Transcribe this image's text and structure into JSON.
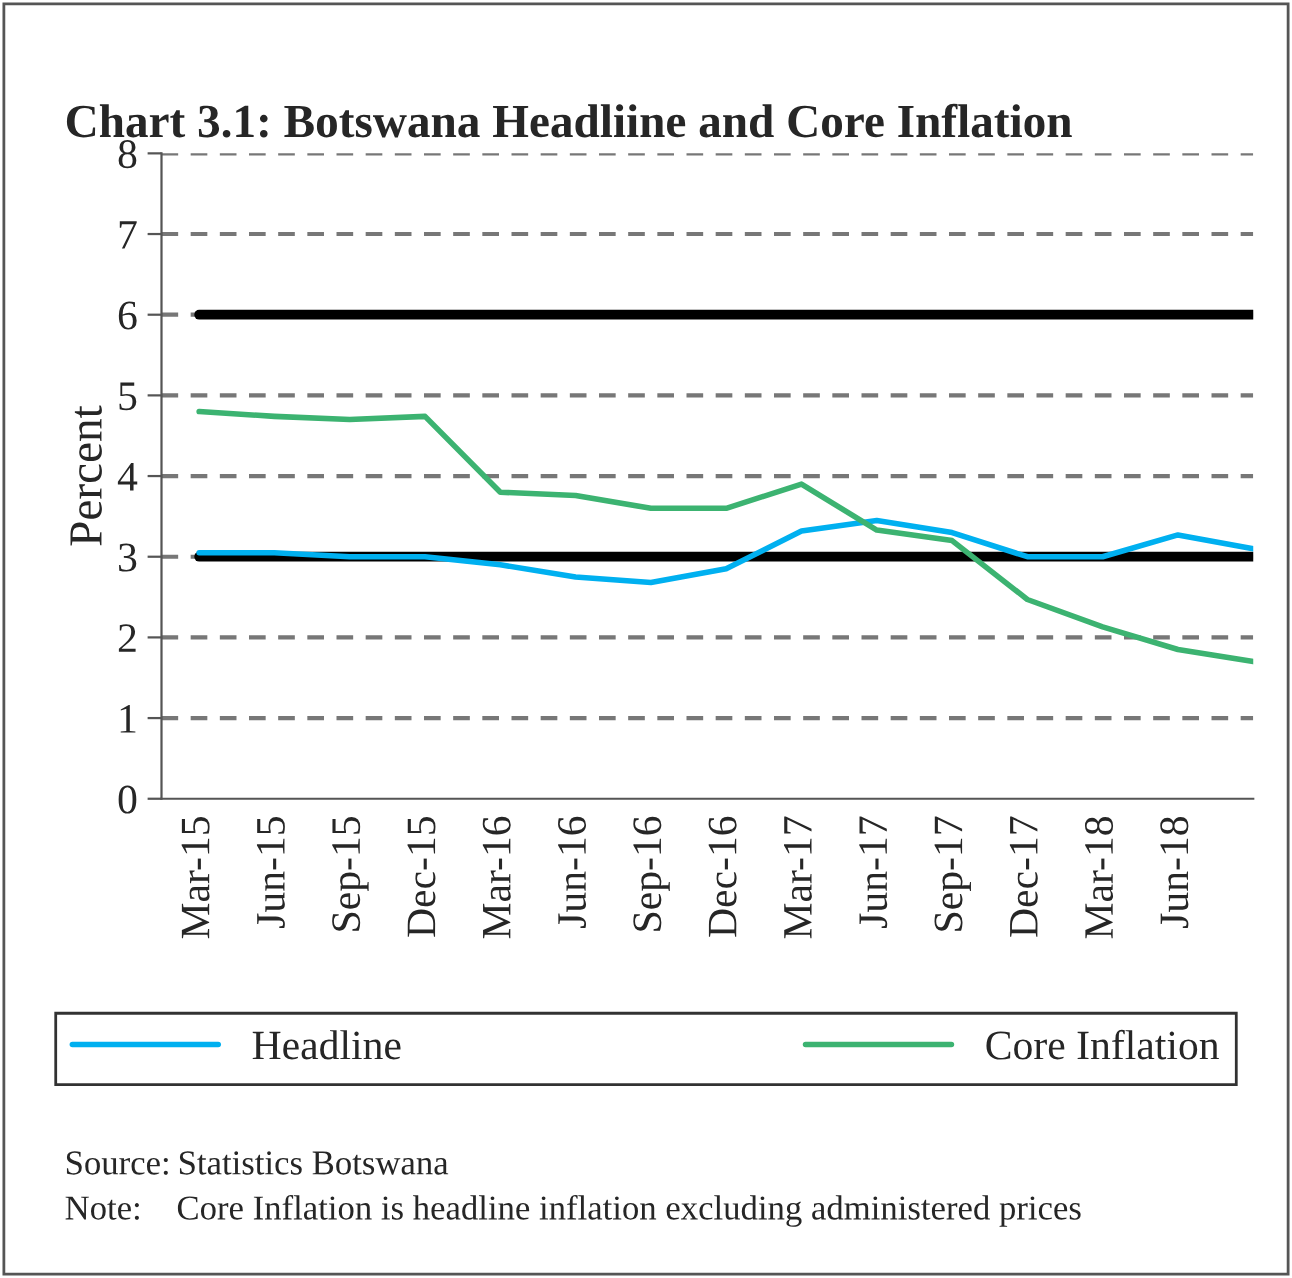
{
  "chart_data": {
    "type": "line",
    "title": "Chart 3.1: Botswana Headliine and Core Inflation",
    "ylabel": "Percent",
    "categories": [
      "Mar-15",
      "Jun-15",
      "Sep-15",
      "Dec-15",
      "Mar-16",
      "Jun-16",
      "Sep-16",
      "Dec-16",
      "Mar-17",
      "Jun-17",
      "Sep-17",
      "Dec-17",
      "Mar-18",
      "Jun-18",
      null
    ],
    "series": [
      {
        "name": "Headline",
        "color": "#00b0f0",
        "values": [
          3.05,
          3.05,
          3.0,
          3.0,
          2.9,
          2.75,
          2.68,
          2.85,
          3.32,
          3.45,
          3.3,
          3.0,
          3.0,
          3.27,
          3.1
        ]
      },
      {
        "name": "Core Inflation",
        "color": "#3cb371",
        "values": [
          4.8,
          4.74,
          4.7,
          4.74,
          3.8,
          3.76,
          3.6,
          3.6,
          3.9,
          3.33,
          3.2,
          2.47,
          2.13,
          1.85,
          1.7
        ]
      },
      {
        "color": "#000000",
        "values": [
          6,
          6,
          6,
          6,
          6,
          6,
          6,
          6,
          6,
          6,
          6,
          6,
          6,
          6,
          6
        ]
      },
      {
        "color": "#000000",
        "values": [
          3,
          3,
          3,
          3,
          3,
          3,
          3,
          3,
          3,
          3,
          3,
          3,
          3,
          3,
          3
        ]
      }
    ],
    "ylim": [
      0,
      8
    ],
    "yticks": [
      0,
      1,
      2,
      3,
      4,
      5,
      6,
      7,
      8
    ],
    "grid": "y",
    "legend": "bottom",
    "annotations": [
      "Source: Statistics Botswana",
      "Note:    Core Inflation is headline inflation excluding administered prices"
    ]
  }
}
